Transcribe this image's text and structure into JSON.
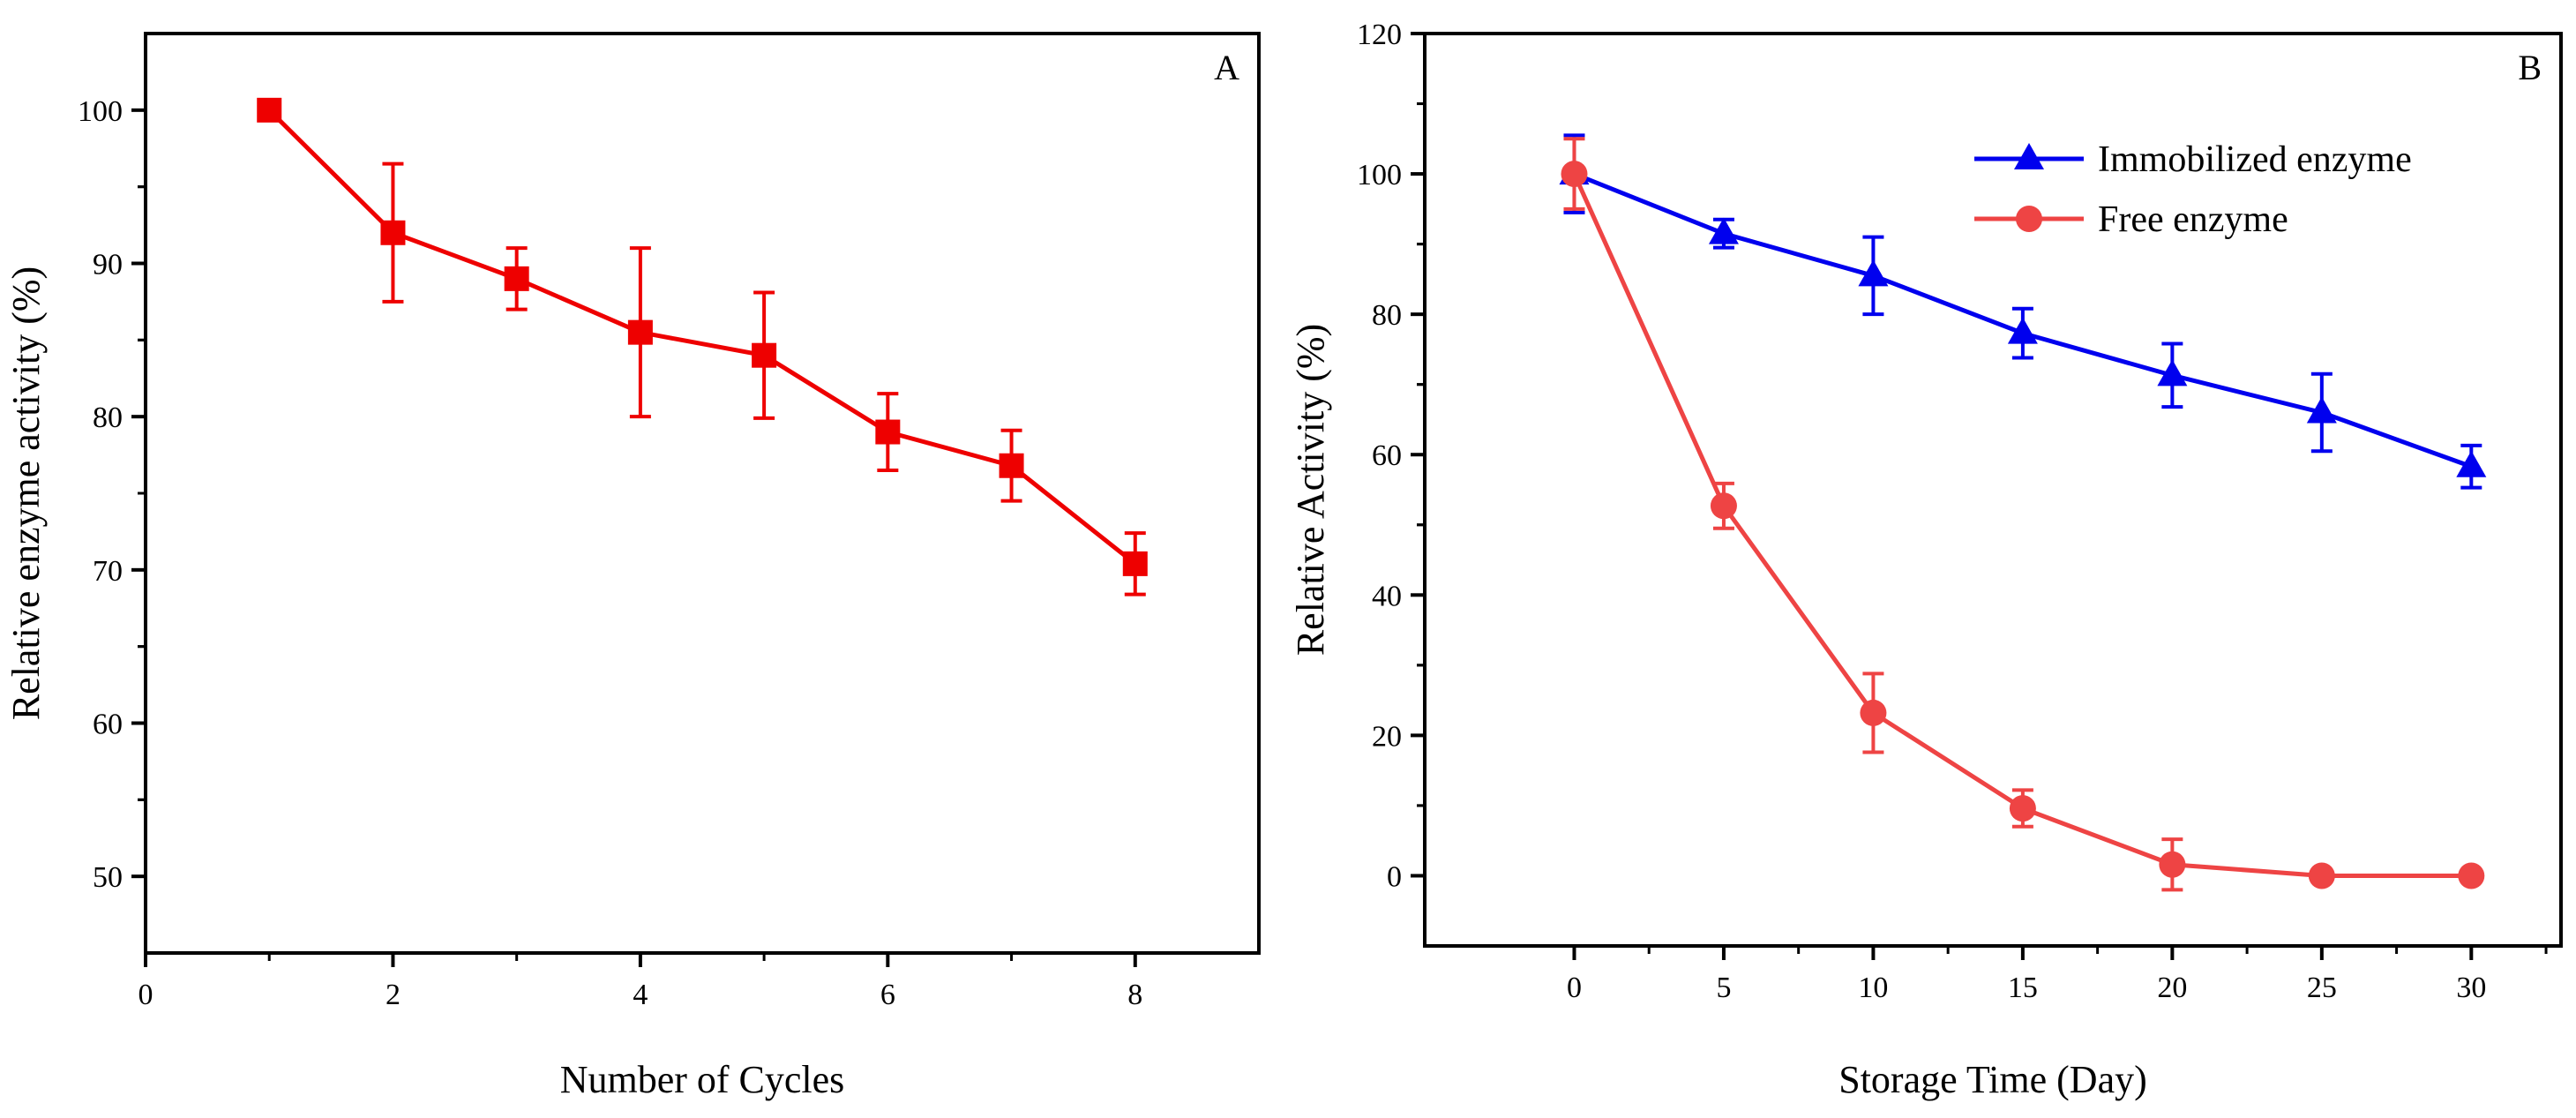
{
  "chart_data": [
    {
      "panel_label": "A",
      "type": "line",
      "title": "",
      "xlabel": "Number of Cycles",
      "ylabel": "Relative enzyme activity (%)",
      "xlim": [
        0,
        9
      ],
      "ylim": [
        45,
        105
      ],
      "xticks": [
        0,
        2,
        4,
        6,
        8
      ],
      "yticks": [
        50,
        60,
        70,
        80,
        90,
        100
      ],
      "grid": false,
      "legend": "none",
      "series": [
        {
          "name": "",
          "color": "#ee0000",
          "marker": "square",
          "x": [
            1,
            2,
            3,
            4,
            5,
            6,
            7,
            8
          ],
          "y": [
            100,
            92,
            89,
            85.5,
            84,
            79,
            76.8,
            70.4
          ],
          "error": [
            0,
            4.5,
            2,
            5.5,
            4.1,
            2.5,
            2.3,
            2
          ]
        }
      ]
    },
    {
      "panel_label": "B",
      "type": "line",
      "title": "",
      "xlabel": "Storage Time (Day)",
      "ylabel": "Relative Activity (%)",
      "xlim": [
        -5,
        33
      ],
      "ylim": [
        -10,
        120
      ],
      "xticks": [
        0,
        5,
        10,
        15,
        20,
        25,
        30
      ],
      "yticks": [
        0,
        20,
        40,
        60,
        80,
        100,
        120
      ],
      "grid": false,
      "legend": "top-right",
      "series": [
        {
          "name": "Immobilized enzyme",
          "color": "#0000ee",
          "marker": "triangle",
          "x": [
            0,
            5,
            10,
            15,
            20,
            25,
            30
          ],
          "y": [
            100,
            91.5,
            85.5,
            77.3,
            71.3,
            66,
            58.3
          ],
          "error": [
            5.5,
            2,
            5.5,
            3.5,
            4.5,
            5.5,
            3
          ]
        },
        {
          "name": "Free enzyme",
          "color": "#ee4444",
          "marker": "circle",
          "x": [
            0,
            5,
            10,
            15,
            20,
            25,
            30
          ],
          "y": [
            100,
            52.7,
            23.2,
            9.6,
            1.6,
            0,
            0
          ],
          "error": [
            5,
            3.2,
            5.6,
            2.6,
            3.6,
            0,
            0
          ]
        }
      ]
    }
  ]
}
